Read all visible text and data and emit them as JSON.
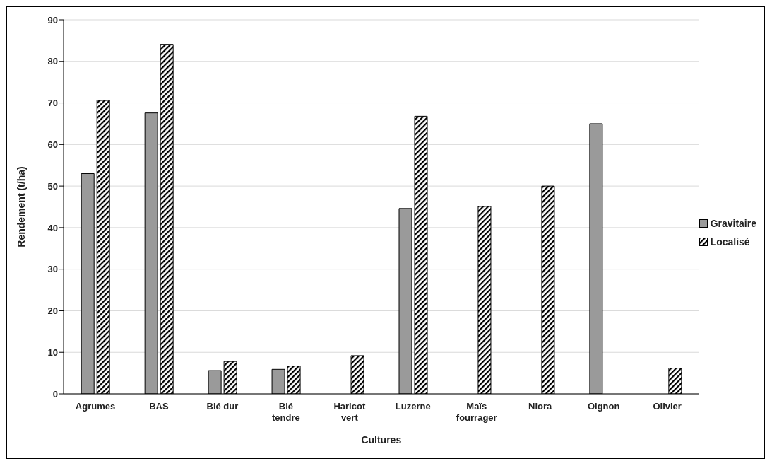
{
  "chart_data": {
    "type": "bar",
    "xlabel": "Cultures",
    "ylabel": "Rendement (t/ha)",
    "categories": [
      "Agrumes",
      "BAS",
      "Blé dur",
      "Blé tendre",
      "Haricot vert",
      "Luzerne",
      "Maïs fourrager",
      "Niora",
      "Oignon",
      "Olivier"
    ],
    "series": [
      {
        "name": "Gravitaire",
        "color": "#9a9a9a",
        "values": [
          53,
          67.6,
          5.6,
          5.9,
          null,
          44.6,
          null,
          null,
          65,
          null
        ]
      },
      {
        "name": "Localisé",
        "color": "#000000",
        "values": [
          70.6,
          84.1,
          7.8,
          6.7,
          9.2,
          66.8,
          45.1,
          50,
          null,
          6.2
        ]
      }
    ],
    "ylim": [
      0,
      90
    ],
    "yticks": [
      0,
      10,
      20,
      30,
      40,
      50,
      60,
      70,
      80,
      90
    ],
    "grid": "y",
    "legend": "right"
  }
}
